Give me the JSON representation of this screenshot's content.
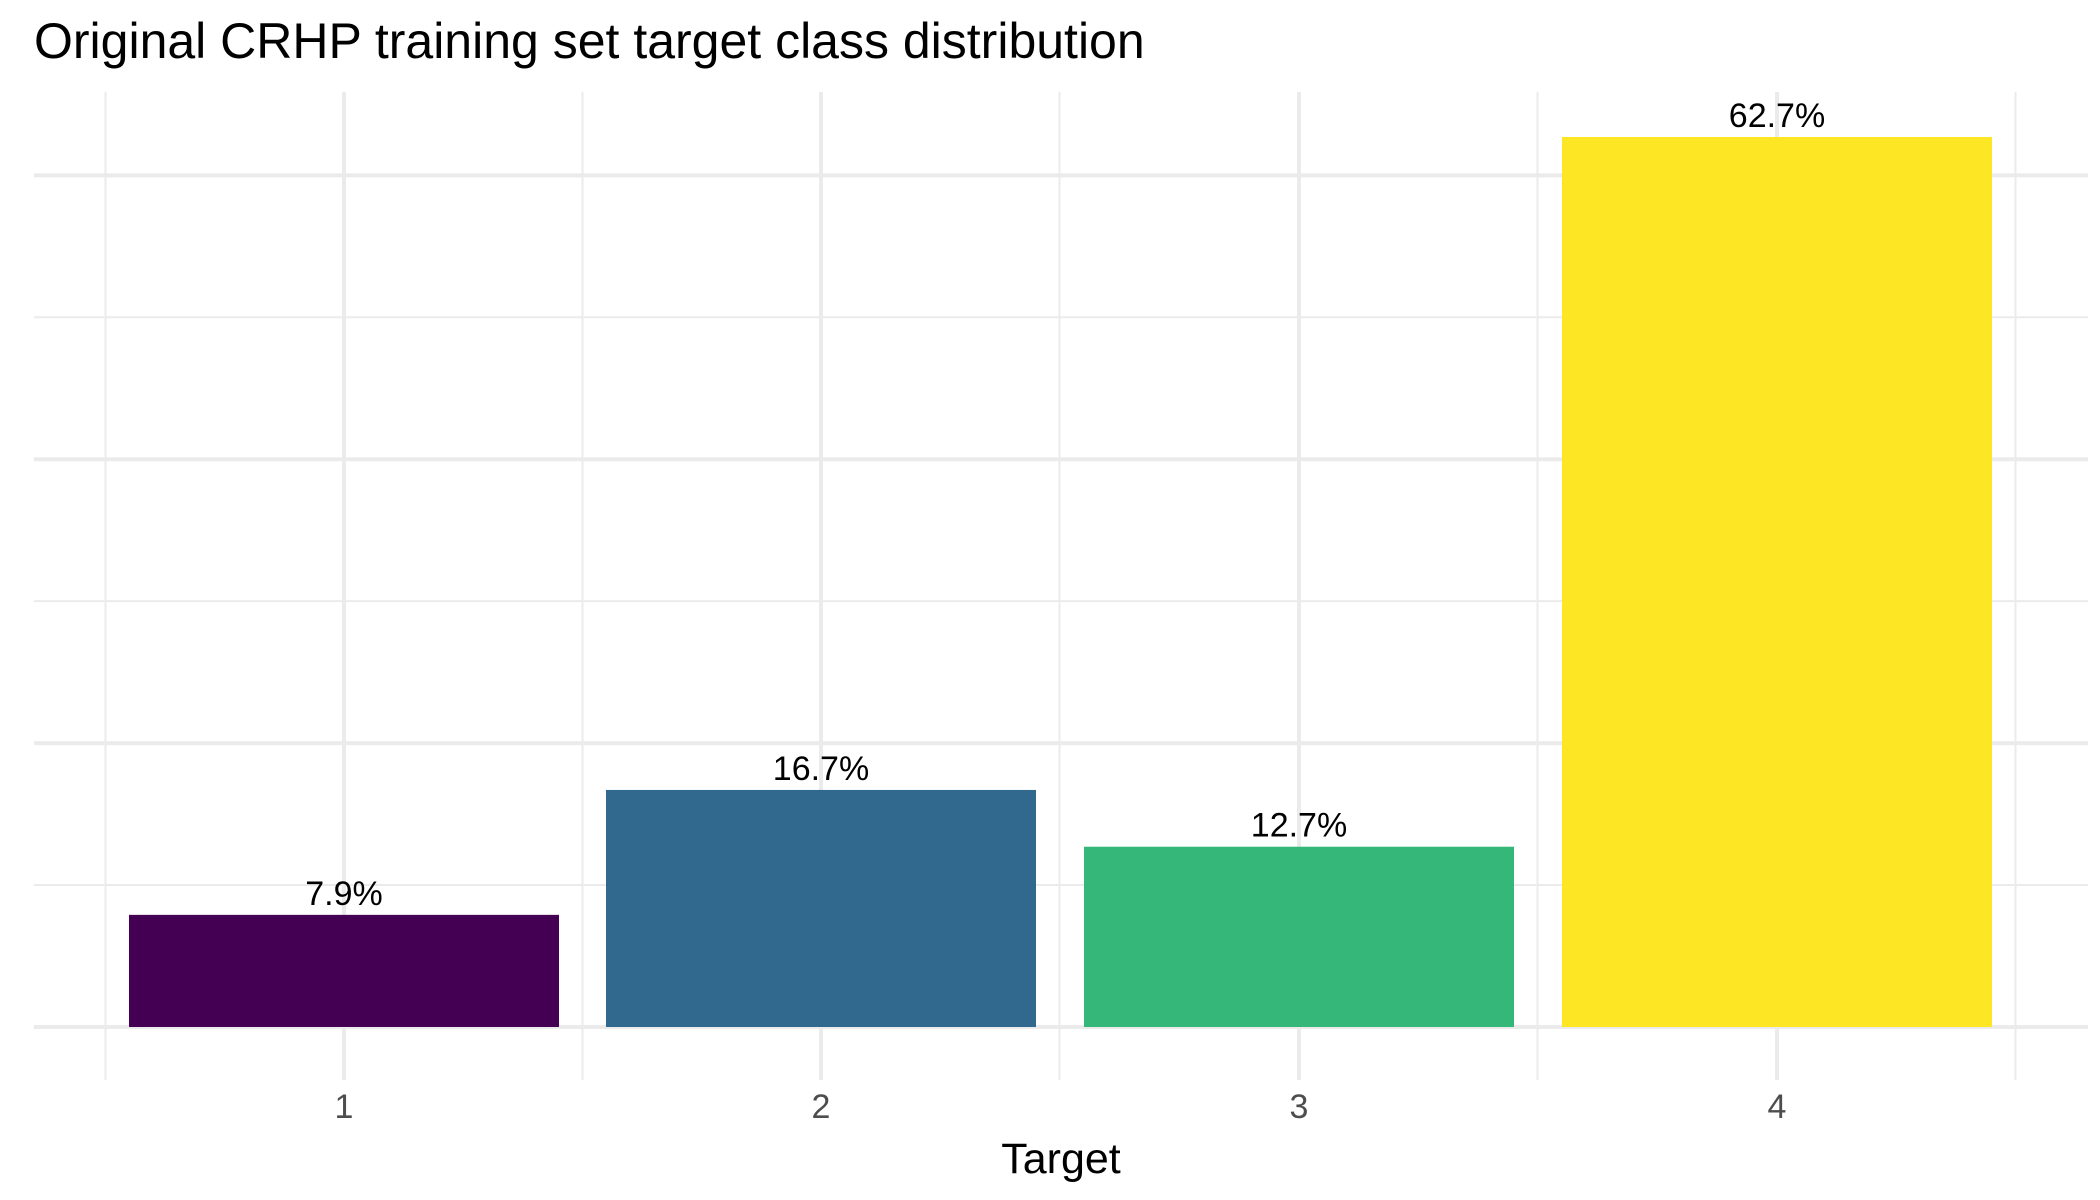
{
  "chart_data": {
    "type": "bar",
    "title": "Original CRHP training set target class distribution",
    "xlabel": "Target",
    "ylabel": "",
    "categories": [
      "1",
      "2",
      "3",
      "4"
    ],
    "values": [
      7.9,
      16.7,
      12.7,
      62.7
    ],
    "value_labels": [
      "7.9%",
      "16.7%",
      "12.7%",
      "62.7%"
    ],
    "colors": [
      "#440154",
      "#31688E",
      "#35B779",
      "#FDE725"
    ],
    "ylim": [
      -3,
      70
    ],
    "grid": true,
    "legend": "none"
  }
}
